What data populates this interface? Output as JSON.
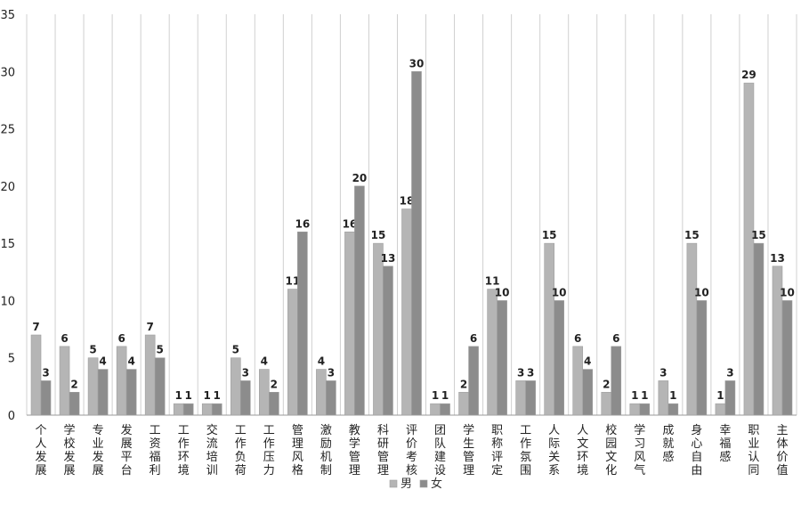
{
  "chart_data": {
    "type": "bar",
    "categories": [
      "个人发展",
      "学校发展",
      "专业发展",
      "发展平台",
      "工资福利",
      "工作环境",
      "交流培训",
      "工作负荷",
      "工作压力",
      "管理风格",
      "激励机制",
      "教学管理",
      "科研管理",
      "评价考核",
      "团队建设",
      "学生管理",
      "职称评定",
      "工作氛围",
      "人际关系",
      "人文环境",
      "校园文化",
      "学习风气",
      "成就感",
      "身心自由",
      "幸福感",
      "职业认同",
      "主体价值"
    ],
    "series": [
      {
        "name": "男",
        "values": [
          7,
          6,
          5,
          6,
          7,
          1,
          1,
          5,
          4,
          11,
          4,
          16,
          15,
          18,
          1,
          2,
          11,
          3,
          15,
          6,
          2,
          1,
          3,
          15,
          1,
          29,
          13
        ]
      },
      {
        "name": "女",
        "values": [
          3,
          2,
          4,
          4,
          5,
          1,
          1,
          3,
          2,
          16,
          3,
          20,
          13,
          30,
          1,
          6,
          10,
          3,
          10,
          4,
          6,
          1,
          1,
          10,
          3,
          15,
          10
        ]
      }
    ],
    "ylim": [
      0,
      35
    ],
    "yticks": [
      0,
      5,
      10,
      15,
      20,
      25,
      30,
      35
    ],
    "grid": "vertical",
    "legend": "bottom-center",
    "colors": {
      "男": "#b5b5b5",
      "女": "#8c8c8c",
      "grid": "#d0d0d0",
      "axis": "#9a9a9a"
    }
  }
}
